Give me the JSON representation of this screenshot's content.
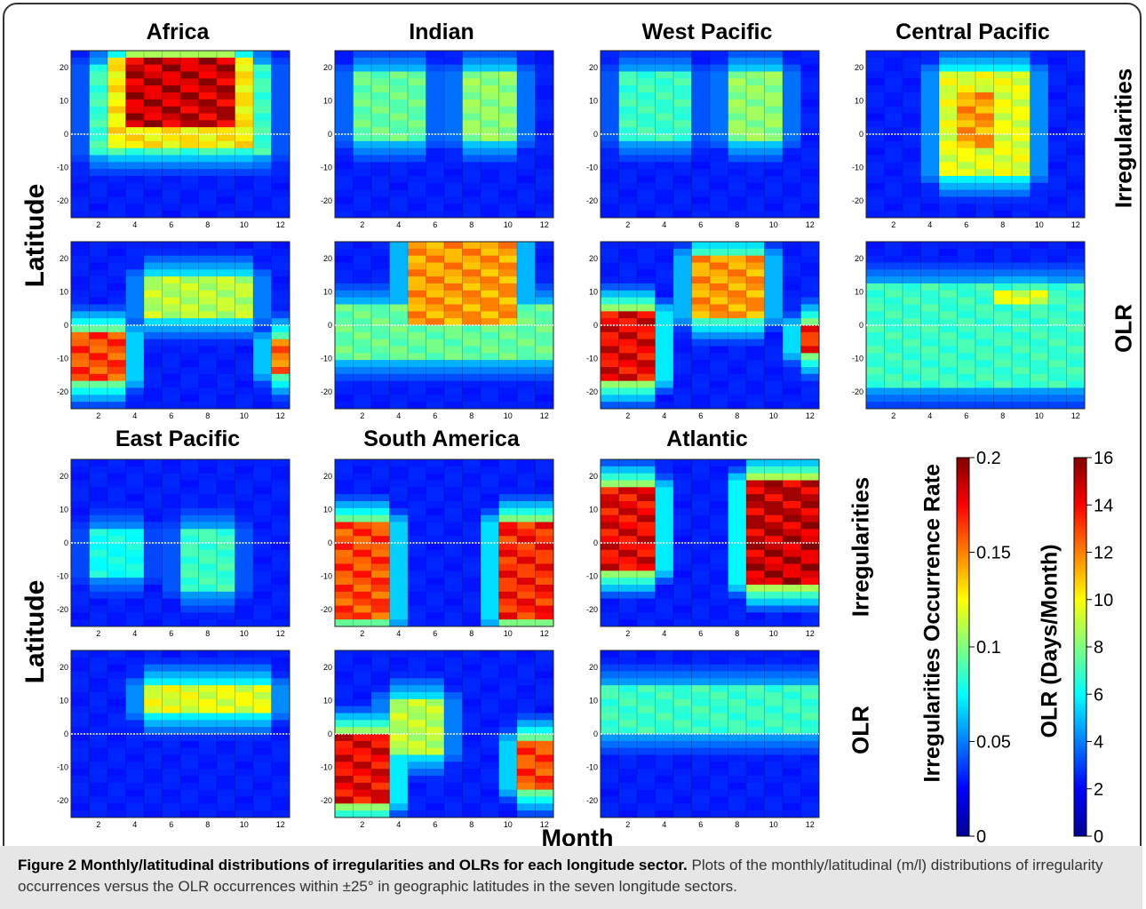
{
  "panel_titles": {
    "africa": "Africa",
    "indian": "Indian",
    "west_pacific": "West Pacific",
    "central_pacific": "Central Pacific",
    "east_pacific": "East Pacific",
    "south_america": "South America",
    "atlantic": "Atlantic"
  },
  "row_labels": {
    "irregularities": "Irregularities",
    "olr": "OLR"
  },
  "axis_labels": {
    "latitude": "Latitude",
    "month": "Month"
  },
  "colorbars": {
    "irregularities": {
      "label": "Irregularities Occurrence Rate",
      "ticks": [
        "0",
        "0.05",
        "0.1",
        "0.15",
        "0.2"
      ],
      "range": [
        0,
        0.2
      ]
    },
    "olr": {
      "label": "OLR (Days/Month)",
      "ticks": [
        "0",
        "2",
        "4",
        "6",
        "8",
        "10",
        "12",
        "14",
        "16"
      ],
      "range": [
        0,
        16
      ]
    }
  },
  "caption": {
    "title": "Figure 2 Monthly/latitudinal distributions of irregularities and OLRs for each longitude sector.",
    "text": "Plots of the monthly/latitudinal (m/l) distributions of irregularity occurrences versus the OLR occurrences within ±25° in geographic latitudes in the seven longitude sectors."
  },
  "chart_data": {
    "type": "heatmap",
    "x_ticks": [
      "2",
      "4",
      "6",
      "8",
      "10",
      "12"
    ],
    "y_ticks": [
      "20",
      "10",
      "0",
      "-10",
      "-20"
    ],
    "xlim": [
      0.5,
      12.5
    ],
    "ylim": [
      -25,
      25
    ],
    "panels": [
      {
        "sector": "Africa",
        "variable": "Irregularities",
        "features": [
          {
            "months": [
              4,
              9
            ],
            "lat": [
              2,
              22
            ],
            "level": 1.0
          },
          {
            "months": [
              3,
              10
            ],
            "lat": [
              -4,
              22
            ],
            "level": 0.65
          },
          {
            "months": [
              2,
              11
            ],
            "lat": [
              -6,
              20
            ],
            "level": 0.4
          }
        ]
      },
      {
        "sector": "Indian",
        "variable": "Irregularities",
        "features": [
          {
            "months": [
              2,
              5
            ],
            "lat": [
              -2,
              18
            ],
            "level": 0.45
          },
          {
            "months": [
              8,
              10
            ],
            "lat": [
              -2,
              18
            ],
            "level": 0.5
          }
        ]
      },
      {
        "sector": "West Pacific",
        "variable": "Irregularities",
        "features": [
          {
            "months": [
              2,
              5
            ],
            "lat": [
              -2,
              18
            ],
            "level": 0.4
          },
          {
            "months": [
              8,
              10
            ],
            "lat": [
              -2,
              18
            ],
            "level": 0.5
          }
        ]
      },
      {
        "sector": "Central Pacific",
        "variable": "Irregularities",
        "features": [
          {
            "months": [
              5,
              9
            ],
            "lat": [
              -12,
              18
            ],
            "level": 0.6
          },
          {
            "months": [
              6,
              7
            ],
            "lat": [
              -4,
              12
            ],
            "level": 0.75
          }
        ]
      },
      {
        "sector": "Africa",
        "variable": "OLR",
        "features": [
          {
            "months": [
              1,
              3
            ],
            "lat": [
              -16,
              -2
            ],
            "level": 0.85
          },
          {
            "months": [
              12,
              12
            ],
            "lat": [
              -14,
              -4
            ],
            "level": 0.8
          },
          {
            "months": [
              5,
              10
            ],
            "lat": [
              2,
              14
            ],
            "level": 0.55
          }
        ]
      },
      {
        "sector": "Indian",
        "variable": "OLR",
        "features": [
          {
            "months": [
              5,
              10
            ],
            "lat": [
              0,
              24
            ],
            "level": 0.75
          },
          {
            "months": [
              1,
              12
            ],
            "lat": [
              -10,
              6
            ],
            "level": 0.45
          }
        ]
      },
      {
        "sector": "West Pacific",
        "variable": "OLR",
        "features": [
          {
            "months": [
              1,
              3
            ],
            "lat": [
              -16,
              4
            ],
            "level": 0.95
          },
          {
            "months": [
              6,
              9
            ],
            "lat": [
              2,
              20
            ],
            "level": 0.75
          },
          {
            "months": [
              12,
              12
            ],
            "lat": [
              -8,
              0
            ],
            "level": 0.9
          }
        ]
      },
      {
        "sector": "Central Pacific",
        "variable": "OLR",
        "features": [
          {
            "months": [
              1,
              12
            ],
            "lat": [
              -18,
              12
            ],
            "level": 0.4
          },
          {
            "months": [
              8,
              10
            ],
            "lat": [
              6,
              10
            ],
            "level": 0.6
          }
        ]
      },
      {
        "sector": "East Pacific",
        "variable": "Irregularities",
        "features": [
          {
            "months": [
              2,
              4
            ],
            "lat": [
              -10,
              4
            ],
            "level": 0.35
          },
          {
            "months": [
              7,
              9
            ],
            "lat": [
              -14,
              4
            ],
            "level": 0.4
          }
        ]
      },
      {
        "sector": "South America",
        "variable": "Irregularities",
        "features": [
          {
            "months": [
              1,
              3
            ],
            "lat": [
              -22,
              6
            ],
            "level": 0.85
          },
          {
            "months": [
              10,
              12
            ],
            "lat": [
              -22,
              6
            ],
            "level": 0.9
          }
        ]
      },
      {
        "sector": "Atlantic",
        "variable": "Irregularities",
        "features": [
          {
            "months": [
              1,
              3
            ],
            "lat": [
              -8,
              16
            ],
            "level": 0.95
          },
          {
            "months": [
              9,
              12
            ],
            "lat": [
              -12,
              18
            ],
            "level": 1.0
          }
        ]
      },
      {
        "sector": "East Pacific",
        "variable": "OLR",
        "features": [
          {
            "months": [
              5,
              11
            ],
            "lat": [
              6,
              14
            ],
            "level": 0.6
          }
        ]
      },
      {
        "sector": "South America",
        "variable": "OLR",
        "features": [
          {
            "months": [
              1,
              3
            ],
            "lat": [
              -20,
              0
            ],
            "level": 0.95
          },
          {
            "months": [
              11,
              12
            ],
            "lat": [
              -16,
              -2
            ],
            "level": 0.85
          },
          {
            "months": [
              4,
              6
            ],
            "lat": [
              -6,
              10
            ],
            "level": 0.55
          }
        ]
      },
      {
        "sector": "Atlantic",
        "variable": "OLR",
        "features": [
          {
            "months": [
              1,
              12
            ],
            "lat": [
              0,
              14
            ],
            "level": 0.4
          }
        ]
      }
    ]
  }
}
